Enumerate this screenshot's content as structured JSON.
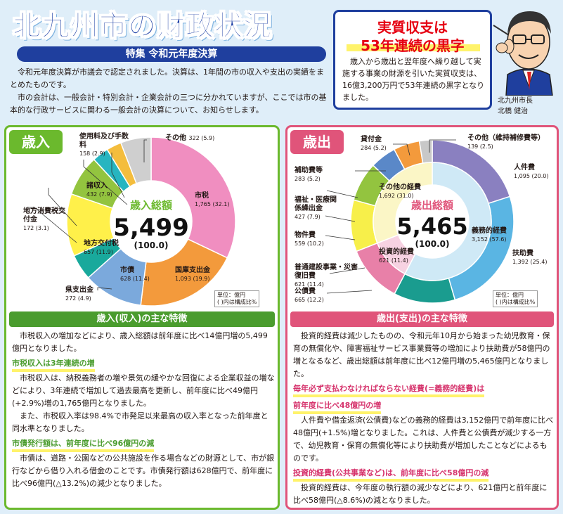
{
  "header": {
    "title": "北九州市の財政状況",
    "subtitle": "特集 令和元年度決算",
    "intro": [
      "令和元年度決算が市議会で認定されました。決算は、1年間の市の収入や支出の実績をまとめたものです。",
      "市の会計は、一般会計・特別会計・企業会計の三つに分かれていますが、ここでは市の基本的な行政サービスに関わる一般会計の決算について、お知らせします。"
    ]
  },
  "surplus": {
    "title1": "実質収支は",
    "title2": "53年連続の黒字",
    "body": "歳入から歳出と翌年度へ繰り越して実施する事業の財源を引いた実質収支は、16億3,200万円で53年連続の黒字となりました。"
  },
  "mayor": {
    "role": "北九州市長",
    "name": "北橋 健治"
  },
  "revenue": {
    "tab": "歳入",
    "center_label": "歳入総額",
    "total": "5,499",
    "total_pct": "(100.0)",
    "unit1": "単位：億円",
    "unit2": "( )内は構成比%",
    "labels": [
      {
        "name": "市税",
        "val": "1,765 (32.1)"
      },
      {
        "name": "国庫支出金",
        "val": "1,093 (19.9)"
      },
      {
        "name": "市債",
        "val": "628 (11.4)"
      },
      {
        "name": "県支出金",
        "val": "272 (4.9)"
      },
      {
        "name": "地方交付税",
        "val": "657 (11.9)"
      },
      {
        "name": "諸収入",
        "val": "432 (7.9)"
      },
      {
        "name": "地方消費税交付金",
        "val": "172 (3.1)"
      },
      {
        "name": "使用料及び手数料",
        "val": "158 (2.9)"
      },
      {
        "name": "その他",
        "val": "322 (5.9)"
      }
    ],
    "heading": "歳入(収入)の主な特徴",
    "p1": "市税収入の増加などにより、歳入総額は前年度に比べ14億円増の5,499億円となりました。",
    "h1": "市税収入は3年連続の増",
    "p2": "市税収入は、納税義務者の増や景気の緩やかな回復による企業収益の増などにより、3年連続で増加して過去最高を更新し、前年度に比べ49億円(+2.9%)増の1,765億円となりました。",
    "p3": "また、市税収入率は98.4%で市発足以来最高の収入率となった前年度と同水準となりました。",
    "h2": "市債発行額は、前年度に比べ96億円の減",
    "p4": "市債は、道路・公園などの公共施設を作る場合などの財源として、市が銀行などから借り入れる借金のことです。市債発行額は628億円で、前年度に比べ96億円(△13.2%)の減少となりました。"
  },
  "expenditure": {
    "tab": "歳出",
    "center_label": "歳出総額",
    "total": "5,465",
    "total_pct": "(100.0)",
    "unit1": "単位：億円",
    "unit2": "( )内は構成比%",
    "labels": [
      {
        "name": "その他（維持補修費等）",
        "val": "139 (2.5)"
      },
      {
        "name": "人件費",
        "val": "1,095 (20.0)"
      },
      {
        "name": "義務的経費",
        "val": "3,152 (57.6)"
      },
      {
        "name": "扶助費",
        "val": "1,392 (25.4)"
      },
      {
        "name": "公債費",
        "val": "665 (12.2)"
      },
      {
        "name": "普通建設事業・災害復旧費",
        "val": "621 (11.4)"
      },
      {
        "name": "投資的経費",
        "val": "621 (11.4)"
      },
      {
        "name": "物件費",
        "val": "559 (10.2)"
      },
      {
        "name": "福祉・医療関係繰出金",
        "val": "427 (7.9)"
      },
      {
        "name": "その他の経費",
        "val": "1,692 (31.0)"
      },
      {
        "name": "補助費等",
        "val": "283 (5.2)"
      },
      {
        "name": "貸付金",
        "val": "284 (5.2)"
      }
    ],
    "heading": "歳出(支出)の主な特徴",
    "p1": "投資的経費は減少したものの、令和元年10月から始まった幼児教育・保育の無償化や、障害福祉サービス事業費等の増加により扶助費が58億円の増となるなど、歳出総額は前年度に比べ12億円増の5,465億円となりました。",
    "h1a": "毎年必ず支払わなければならない経費(=義務的経費)は",
    "h1b": "前年度に比べ48億円の増",
    "p2": "人件費や借金返済(公債費)などの義務的経費は3,152億円で前年度に比べ48億円(+1.5%)増となりました。これは、人件費と公債費が減少する一方で、幼児教育・保育の無償化等により扶助費が増加したことなどによるものです。",
    "h2": "投資的経費(公共事業など)は、前年度に比べ58億円の減",
    "p3": "投資的経費は、今年度の執行額の減少などにより、621億円と前年度に比べ58億円(△8.6%)の減となりました。"
  },
  "chart_data": [
    {
      "type": "pie",
      "title": "歳入総額 5,499",
      "categories": [
        "市税",
        "国庫支出金",
        "市債",
        "県支出金",
        "地方交付税",
        "諸収入",
        "地方消費税交付金",
        "使用料及び手数料",
        "その他"
      ],
      "values": [
        1765,
        1093,
        628,
        272,
        657,
        432,
        172,
        158,
        322
      ],
      "percent": [
        32.1,
        19.9,
        11.4,
        4.9,
        11.9,
        7.9,
        3.1,
        2.9,
        5.9
      ],
      "colors": [
        "#f08ec0",
        "#f39a3c",
        "#7ba9dc",
        "#19a99c",
        "#fff04a",
        "#93c43f",
        "#27b5c0",
        "#f4bd3d",
        "#cfcfcf"
      ]
    },
    {
      "type": "pie",
      "title": "歳出総額 5,465",
      "outer": {
        "categories": [
          "人件費",
          "扶助費",
          "公債費",
          "普通建設事業・災害復旧費",
          "物件費",
          "福祉・医療関係繰出金",
          "補助費等",
          "貸付金",
          "その他（維持補修費等）"
        ],
        "values": [
          1095,
          1392,
          665,
          621,
          559,
          427,
          283,
          284,
          139
        ],
        "percent": [
          20.0,
          25.4,
          12.2,
          11.4,
          10.2,
          7.9,
          5.2,
          5.2,
          2.5
        ],
        "colors": [
          "#8a80c0",
          "#5ab5e3",
          "#1a9c8f",
          "#e880a8",
          "#f7ef4a",
          "#93c43f",
          "#5a88c8",
          "#f39a3c",
          "#c8c8c8"
        ]
      },
      "inner": {
        "categories": [
          "義務的経費",
          "投資的経費",
          "その他の経費"
        ],
        "values": [
          3152,
          621,
          1692
        ],
        "percent": [
          57.6,
          11.4,
          31.0
        ],
        "colors": [
          "#cfe9f6",
          "#f7d2e2",
          "#fbf6c6"
        ]
      }
    }
  ]
}
